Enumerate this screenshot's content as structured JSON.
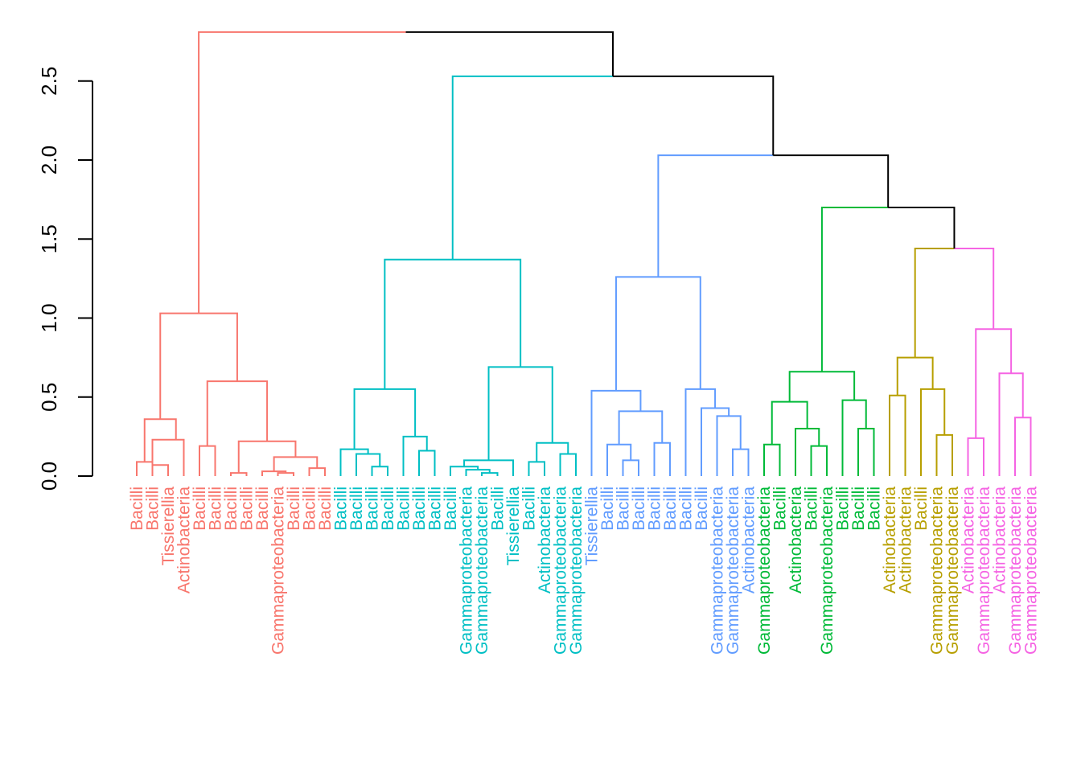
{
  "colors": {
    "black": "#000000",
    "red": "#F8766D",
    "cyan": "#00BFC4",
    "blue": "#619CFF",
    "green": "#00BA38",
    "olive": "#B79F00",
    "magenta": "#F564E3"
  },
  "y_axis": {
    "range": [
      0,
      2.5
    ],
    "ticks": [
      {
        "value": 0.0,
        "label": "0.0"
      },
      {
        "value": 0.5,
        "label": "0.5"
      },
      {
        "value": 1.0,
        "label": "1.0"
      },
      {
        "value": 1.5,
        "label": "1.5"
      },
      {
        "value": 2.0,
        "label": "2.0"
      },
      {
        "value": 2.5,
        "label": "2.5"
      }
    ]
  },
  "leaves": [
    {
      "label": "Bacilli",
      "color": "red"
    },
    {
      "label": "Bacilli",
      "color": "red"
    },
    {
      "label": "Tissierellia",
      "color": "red"
    },
    {
      "label": "Actinobacteria",
      "color": "red"
    },
    {
      "label": "Bacilli",
      "color": "red"
    },
    {
      "label": "Bacilli",
      "color": "red"
    },
    {
      "label": "Bacilli",
      "color": "red"
    },
    {
      "label": "Bacilli",
      "color": "red"
    },
    {
      "label": "Bacilli",
      "color": "red"
    },
    {
      "label": "Gammaproteobacteria",
      "color": "red"
    },
    {
      "label": "Bacilli",
      "color": "red"
    },
    {
      "label": "Bacilli",
      "color": "red"
    },
    {
      "label": "Bacilli",
      "color": "red"
    },
    {
      "label": "Bacilli",
      "color": "cyan"
    },
    {
      "label": "Bacilli",
      "color": "cyan"
    },
    {
      "label": "Bacilli",
      "color": "cyan"
    },
    {
      "label": "Bacilli",
      "color": "cyan"
    },
    {
      "label": "Bacilli",
      "color": "cyan"
    },
    {
      "label": "Bacilli",
      "color": "cyan"
    },
    {
      "label": "Bacilli",
      "color": "cyan"
    },
    {
      "label": "Bacilli",
      "color": "cyan"
    },
    {
      "label": "Gammaproteobacteria",
      "color": "cyan"
    },
    {
      "label": "Gammaproteobacteria",
      "color": "cyan"
    },
    {
      "label": "Bacilli",
      "color": "cyan"
    },
    {
      "label": "Tissierellia",
      "color": "cyan"
    },
    {
      "label": "Bacilli",
      "color": "cyan"
    },
    {
      "label": "Actinobacteria",
      "color": "cyan"
    },
    {
      "label": "Gammaproteobacteria",
      "color": "cyan"
    },
    {
      "label": "Gammaproteobacteria",
      "color": "cyan"
    },
    {
      "label": "Tissierellia",
      "color": "blue"
    },
    {
      "label": "Bacilli",
      "color": "blue"
    },
    {
      "label": "Bacilli",
      "color": "blue"
    },
    {
      "label": "Bacilli",
      "color": "blue"
    },
    {
      "label": "Bacilli",
      "color": "blue"
    },
    {
      "label": "Bacilli",
      "color": "blue"
    },
    {
      "label": "Bacilli",
      "color": "blue"
    },
    {
      "label": "Bacilli",
      "color": "blue"
    },
    {
      "label": "Gammaproteobacteria",
      "color": "blue"
    },
    {
      "label": "Gammaproteobacteria",
      "color": "blue"
    },
    {
      "label": "Actinobacteria",
      "color": "blue"
    },
    {
      "label": "Gammaproteobacteria",
      "color": "green"
    },
    {
      "label": "Bacilli",
      "color": "green"
    },
    {
      "label": "Actinobacteria",
      "color": "green"
    },
    {
      "label": "Bacilli",
      "color": "green"
    },
    {
      "label": "Gammaproteobacteria",
      "color": "green"
    },
    {
      "label": "Bacilli",
      "color": "green"
    },
    {
      "label": "Bacilli",
      "color": "green"
    },
    {
      "label": "Bacilli",
      "color": "green"
    },
    {
      "label": "Actinobacteria",
      "color": "olive"
    },
    {
      "label": "Actinobacteria",
      "color": "olive"
    },
    {
      "label": "Bacilli",
      "color": "olive"
    },
    {
      "label": "Gammaproteobacteria",
      "color": "olive"
    },
    {
      "label": "Gammaproteobacteria",
      "color": "olive"
    },
    {
      "label": "Actinobacteria",
      "color": "magenta"
    },
    {
      "label": "Gammaproteobacteria",
      "color": "magenta"
    },
    {
      "label": "Actinobacteria",
      "color": "magenta"
    },
    {
      "label": "Gammaproteobacteria",
      "color": "magenta"
    },
    {
      "label": "Gammaproteobacteria",
      "color": "magenta"
    }
  ],
  "merges": [
    {
      "a": [
        0,
        0
      ],
      "b": [
        1,
        0
      ],
      "height": 0.09,
      "color": "red"
    },
    {
      "a": [
        2,
        0
      ],
      "b": [
        1,
        0.09
      ],
      "height": 0.07,
      "color": "red"
    },
    {
      "a": [
        1,
        0.07
      ],
      "b": [
        3,
        0
      ],
      "height": 0.23,
      "color": "red"
    },
    {
      "a": [
        0.5,
        0.09
      ],
      "b": [
        2.5,
        0.23
      ],
      "height": 0.36,
      "color": "red"
    },
    {
      "a": [
        4,
        0
      ],
      "b": [
        5,
        0
      ],
      "height": 0.19,
      "color": "red"
    },
    {
      "a": [
        6,
        0
      ],
      "b": [
        7,
        0
      ],
      "height": 0.02,
      "color": "red"
    },
    {
      "a": [
        9,
        0
      ],
      "b": [
        10,
        0
      ],
      "height": 0.02,
      "color": "red"
    },
    {
      "a": [
        8,
        0
      ],
      "b": [
        9.5,
        0.02
      ],
      "height": 0.03,
      "color": "red"
    },
    {
      "a": [
        11,
        0
      ],
      "b": [
        12,
        0
      ],
      "height": 0.05,
      "color": "red"
    },
    {
      "a": [
        8.75,
        0.03
      ],
      "b": [
        11.5,
        0.05
      ],
      "height": 0.12,
      "color": "red"
    },
    {
      "a": [
        6.5,
        0.02
      ],
      "b": [
        10.125,
        0.12
      ],
      "height": 0.22,
      "color": "red"
    },
    {
      "a": [
        4.5,
        0.19
      ],
      "b": [
        8.3125,
        0.22
      ],
      "height": 0.6,
      "color": "red"
    },
    {
      "a": [
        1.5,
        0.36
      ],
      "b": [
        6.40625,
        0.6
      ],
      "height": 1.03,
      "color": "red"
    },
    {
      "a": [
        15,
        0
      ],
      "b": [
        16,
        0
      ],
      "height": 0.06,
      "color": "cyan"
    },
    {
      "a": [
        14,
        0
      ],
      "b": [
        15.5,
        0.06
      ],
      "height": 0.14,
      "color": "cyan"
    },
    {
      "a": [
        13,
        0
      ],
      "b": [
        14.75,
        0.14
      ],
      "height": 0.17,
      "color": "cyan"
    },
    {
      "a": [
        18,
        0
      ],
      "b": [
        19,
        0
      ],
      "height": 0.16,
      "color": "cyan"
    },
    {
      "a": [
        17,
        0
      ],
      "b": [
        18.5,
        0.16
      ],
      "height": 0.25,
      "color": "cyan"
    },
    {
      "a": [
        13.875,
        0.17
      ],
      "b": [
        17.75,
        0.25
      ],
      "height": 0.55,
      "color": "cyan"
    },
    {
      "a": [
        22,
        0
      ],
      "b": [
        23,
        0
      ],
      "height": 0.02,
      "color": "cyan"
    },
    {
      "a": [
        21,
        0
      ],
      "b": [
        22.5,
        0.02
      ],
      "height": 0.04,
      "color": "cyan"
    },
    {
      "a": [
        20,
        0
      ],
      "b": [
        21.75,
        0.04
      ],
      "height": 0.06,
      "color": "cyan"
    },
    {
      "a": [
        24,
        0
      ],
      "b": [
        20.875,
        0.06
      ],
      "height": 0.1,
      "color": "cyan"
    },
    {
      "a": [
        25,
        0
      ],
      "b": [
        26,
        0
      ],
      "height": 0.09,
      "color": "cyan"
    },
    {
      "a": [
        27,
        0
      ],
      "b": [
        28,
        0
      ],
      "height": 0.14,
      "color": "cyan"
    },
    {
      "a": [
        25.5,
        0.09
      ],
      "b": [
        27.5,
        0.14
      ],
      "height": 0.21,
      "color": "cyan"
    },
    {
      "a": [
        22.4375,
        0.1
      ],
      "b": [
        26.5,
        0.21
      ],
      "height": 0.69,
      "color": "cyan"
    },
    {
      "a": [
        15.8125,
        0.55
      ],
      "b": [
        24.46875,
        0.69
      ],
      "height": 1.37,
      "color": "cyan"
    },
    {
      "a": [
        31,
        0
      ],
      "b": [
        32,
        0
      ],
      "height": 0.1,
      "color": "blue"
    },
    {
      "a": [
        30,
        0
      ],
      "b": [
        31.5,
        0.1
      ],
      "height": 0.2,
      "color": "blue"
    },
    {
      "a": [
        33,
        0
      ],
      "b": [
        34,
        0
      ],
      "height": 0.21,
      "color": "blue"
    },
    {
      "a": [
        30.75,
        0.2
      ],
      "b": [
        33.5,
        0.21
      ],
      "height": 0.41,
      "color": "blue"
    },
    {
      "a": [
        29,
        0
      ],
      "b": [
        32.125,
        0.41
      ],
      "height": 0.54,
      "color": "blue"
    },
    {
      "a": [
        38,
        0
      ],
      "b": [
        39,
        0
      ],
      "height": 0.17,
      "color": "blue"
    },
    {
      "a": [
        37,
        0
      ],
      "b": [
        38.5,
        0.17
      ],
      "height": 0.38,
      "color": "blue"
    },
    {
      "a": [
        36,
        0
      ],
      "b": [
        37.75,
        0.38
      ],
      "height": 0.43,
      "color": "blue"
    },
    {
      "a": [
        35,
        0
      ],
      "b": [
        36.875,
        0.43
      ],
      "height": 0.55,
      "color": "blue"
    },
    {
      "a": [
        30.5625,
        0.54
      ],
      "b": [
        35.9375,
        0.55
      ],
      "height": 1.26,
      "color": "blue"
    },
    {
      "a": [
        40,
        0
      ],
      "b": [
        41,
        0
      ],
      "height": 0.2,
      "color": "green"
    },
    {
      "a": [
        43,
        0
      ],
      "b": [
        44,
        0
      ],
      "height": 0.19,
      "color": "green"
    },
    {
      "a": [
        42,
        0
      ],
      "b": [
        43.5,
        0.19
      ],
      "height": 0.3,
      "color": "green"
    },
    {
      "a": [
        40.5,
        0.2
      ],
      "b": [
        42.75,
        0.3
      ],
      "height": 0.47,
      "color": "green"
    },
    {
      "a": [
        46,
        0
      ],
      "b": [
        47,
        0
      ],
      "height": 0.3,
      "color": "green"
    },
    {
      "a": [
        45,
        0
      ],
      "b": [
        46.5,
        0.3
      ],
      "height": 0.48,
      "color": "green"
    },
    {
      "a": [
        41.625,
        0.47
      ],
      "b": [
        45.75,
        0.48
      ],
      "height": 0.66,
      "color": "green"
    },
    {
      "a": [
        48,
        0
      ],
      "b": [
        49,
        0
      ],
      "height": 0.51,
      "color": "olive"
    },
    {
      "a": [
        51,
        0
      ],
      "b": [
        52,
        0
      ],
      "height": 0.26,
      "color": "olive"
    },
    {
      "a": [
        50,
        0
      ],
      "b": [
        51.5,
        0.26
      ],
      "height": 0.55,
      "color": "olive"
    },
    {
      "a": [
        48.5,
        0.51
      ],
      "b": [
        50.75,
        0.55
      ],
      "height": 0.75,
      "color": "olive"
    },
    {
      "a": [
        53,
        0
      ],
      "b": [
        54,
        0
      ],
      "height": 0.24,
      "color": "magenta"
    },
    {
      "a": [
        56,
        0
      ],
      "b": [
        57,
        0
      ],
      "height": 0.37,
      "color": "magenta"
    },
    {
      "a": [
        55,
        0
      ],
      "b": [
        56.5,
        0.37
      ],
      "height": 0.65,
      "color": "magenta"
    },
    {
      "a": [
        53.5,
        0.24
      ],
      "b": [
        55.75,
        0.65
      ],
      "height": 0.93,
      "color": "magenta"
    },
    {
      "a": [
        49.625,
        0.75
      ],
      "b": [
        54.625,
        0.93
      ],
      "height": 1.44,
      "color": "olive",
      "right_color": "magenta"
    },
    {
      "a": [
        43.6875,
        0.66
      ],
      "b": [
        52.125,
        1.44
      ],
      "height": 1.7,
      "color": "green",
      "right_color": "black"
    },
    {
      "a": [
        33.25,
        1.26
      ],
      "b": [
        47.90625,
        1.7
      ],
      "height": 2.03,
      "color": "blue",
      "right_color": "black"
    },
    {
      "a": [
        20.140625,
        1.37
      ],
      "b": [
        40.578125,
        2.03
      ],
      "height": 2.53,
      "color": "cyan",
      "right_color": "black"
    },
    {
      "a": [
        3.953125,
        1.03
      ],
      "b": [
        30.359375,
        2.53
      ],
      "height": 2.81,
      "color": "red",
      "right_color": "black",
      "split_at": 17.15625
    }
  ]
}
